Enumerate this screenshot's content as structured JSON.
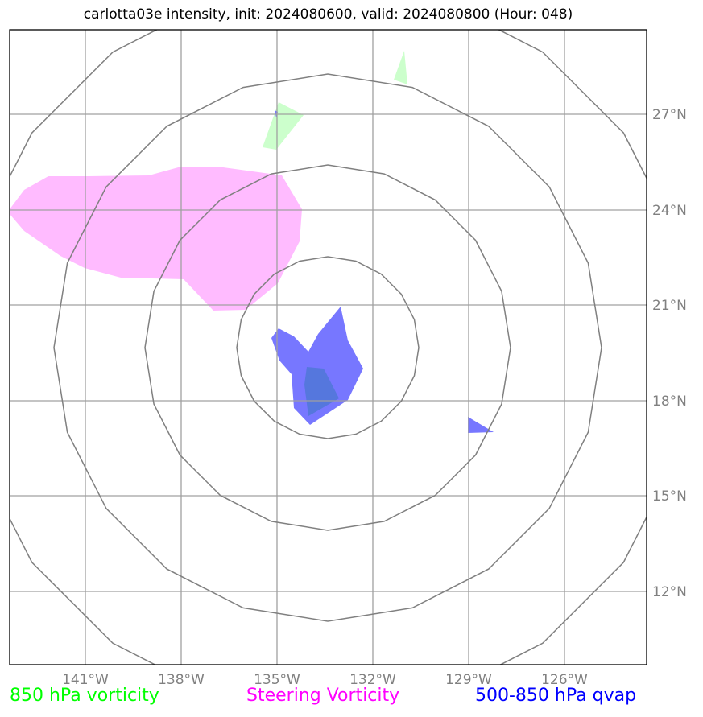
{
  "title": "carlotta03e intensity, init: 2024080600, valid: 2024080800 (Hour: 048)",
  "map": {
    "projection": "polar-centered",
    "storm_center": {
      "lon": -133.0,
      "lat": 20.0
    },
    "range_rings": 4,
    "lon_ticks": [
      "141°W",
      "138°W",
      "135°W",
      "132°W",
      "129°W",
      "126°W"
    ],
    "lat_ticks": [
      "27°N",
      "24°N",
      "21°N",
      "18°N",
      "15°N",
      "12°N"
    ],
    "gridline_color": "#a0a0a0",
    "ring_color": "#808080"
  },
  "legend": [
    {
      "label": "850 hPa vorticity",
      "color": "#00ff00"
    },
    {
      "label": "Steering Vorticity",
      "color": "#ff00ff"
    },
    {
      "label": "500-850 hPa qvap",
      "color": "#0000ff"
    }
  ],
  "layers": {
    "vorticity_850_color": "#ccffcc",
    "steering_vorticity_color": "#ffbbff",
    "qvap_color": "#7777ff",
    "qvap_dark_color": "#5577dd"
  }
}
